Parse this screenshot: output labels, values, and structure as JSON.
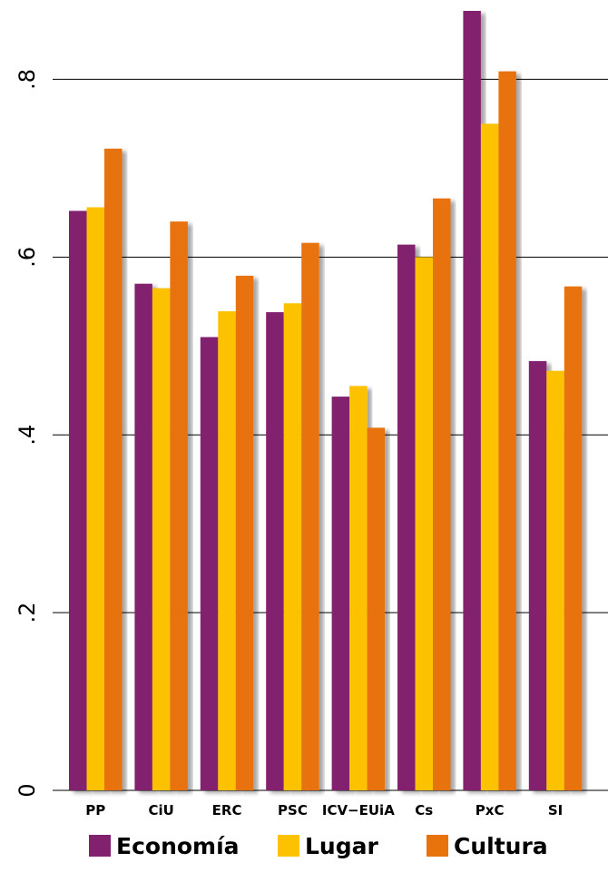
{
  "chart_data": {
    "type": "bar",
    "title": "",
    "xlabel": "",
    "ylabel": "",
    "categories": [
      "PP",
      "CiU",
      "ERC",
      "PSC",
      "ICV−EUiA",
      "Cs",
      "PxC",
      "SI"
    ],
    "series": [
      {
        "name": "Economía",
        "color": "#82216E",
        "values": [
          0.652,
          0.57,
          0.51,
          0.538,
          0.443,
          0.614,
          0.877,
          0.483
        ]
      },
      {
        "name": "Lugar",
        "color": "#FCC200",
        "values": [
          0.656,
          0.565,
          0.539,
          0.548,
          0.455,
          0.6,
          0.75,
          0.472
        ]
      },
      {
        "name": "Cultura",
        "color": "#E8720C",
        "values": [
          0.722,
          0.64,
          0.579,
          0.616,
          0.408,
          0.666,
          0.809,
          0.567
        ]
      }
    ],
    "ylim": [
      0,
      0.877
    ],
    "yticks": [
      {
        "value": 0,
        "label": "0"
      },
      {
        "value": 0.2,
        "label": ".2"
      },
      {
        "value": 0.4,
        "label": ".4"
      },
      {
        "value": 0.6,
        "label": ".6"
      },
      {
        "value": 0.8,
        "label": ".8"
      }
    ],
    "grid": true,
    "legend_position": "bottom"
  }
}
